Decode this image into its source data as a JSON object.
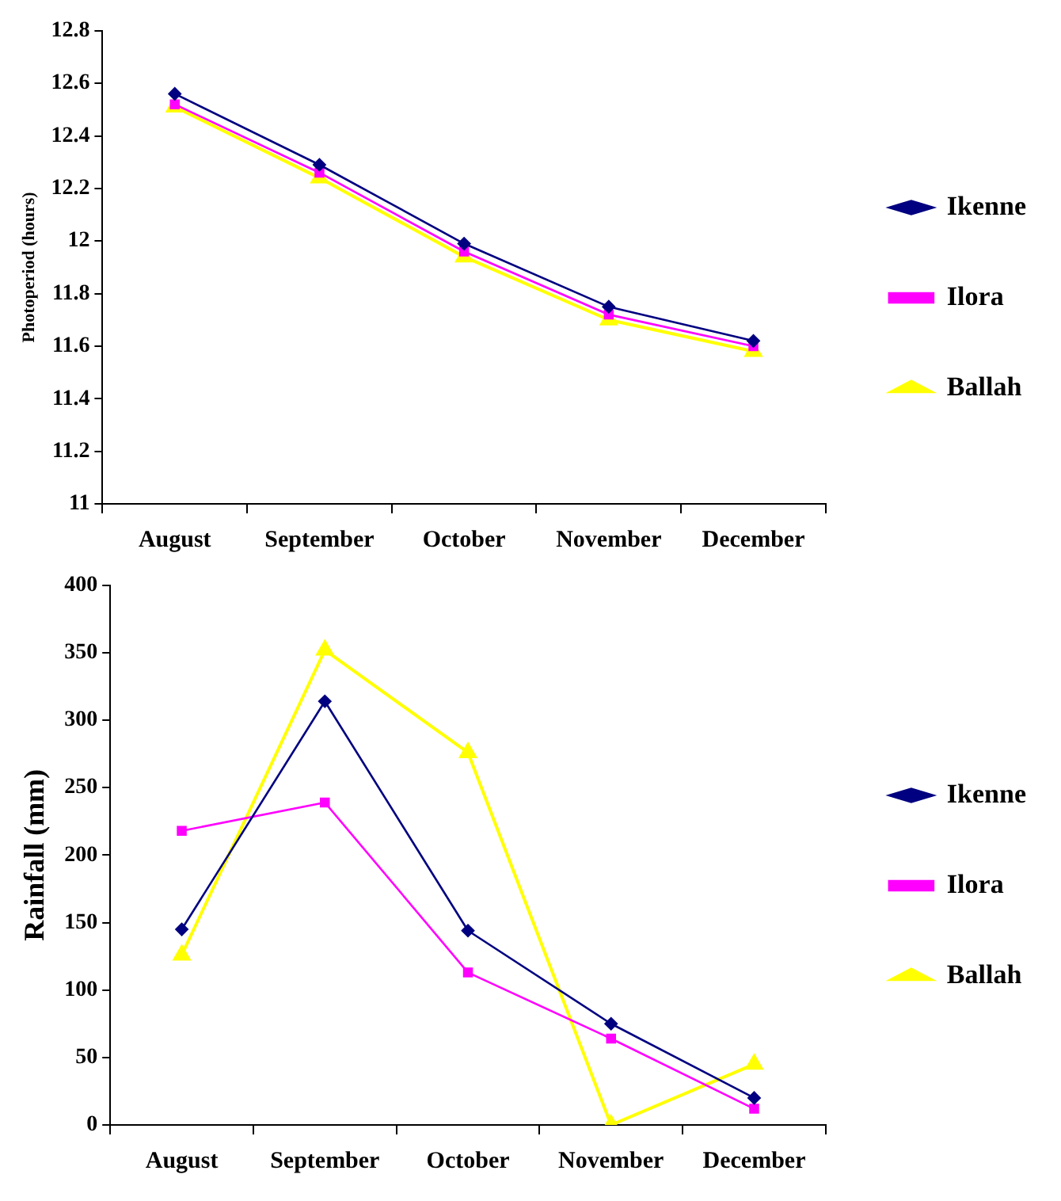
{
  "chart_data": [
    {
      "type": "line",
      "ylabel": "Photoperiod (hours)",
      "categories": [
        "August",
        "September",
        "October",
        "November",
        "December"
      ],
      "series": [
        {
          "name": "Ikenne",
          "color": "#000080",
          "marker": "diamond",
          "values": [
            12.56,
            12.29,
            11.99,
            11.75,
            11.62
          ]
        },
        {
          "name": "Ilora",
          "color": "#ff00ff",
          "marker": "square",
          "values": [
            12.52,
            12.26,
            11.96,
            11.72,
            11.6
          ]
        },
        {
          "name": "Ballah",
          "color": "#ffff00",
          "marker": "triangle",
          "values": [
            12.51,
            12.24,
            11.94,
            11.7,
            11.58
          ]
        }
      ],
      "ylim": [
        11,
        12.8
      ],
      "yticks": [
        11,
        11.2,
        11.4,
        11.6,
        11.8,
        12,
        12.2,
        12.4,
        12.6,
        12.8
      ],
      "grid": false,
      "legend": "right"
    },
    {
      "type": "line",
      "ylabel": "Rainfall (mm)",
      "categories": [
        "August",
        "September",
        "October",
        "November",
        "December"
      ],
      "series": [
        {
          "name": "Ikenne",
          "color": "#000080",
          "marker": "diamond",
          "values": [
            145,
            314,
            144,
            75,
            20
          ]
        },
        {
          "name": "Ilora",
          "color": "#ff00ff",
          "marker": "square",
          "values": [
            218,
            239,
            113,
            64,
            12
          ]
        },
        {
          "name": "Ballah",
          "color": "#ffff00",
          "marker": "triangle",
          "values": [
            126,
            352,
            276,
            0,
            45
          ]
        }
      ],
      "ylim": [
        0,
        400
      ],
      "yticks": [
        0,
        50,
        100,
        150,
        200,
        250,
        300,
        350,
        400
      ],
      "grid": false,
      "legend": "right"
    }
  ]
}
